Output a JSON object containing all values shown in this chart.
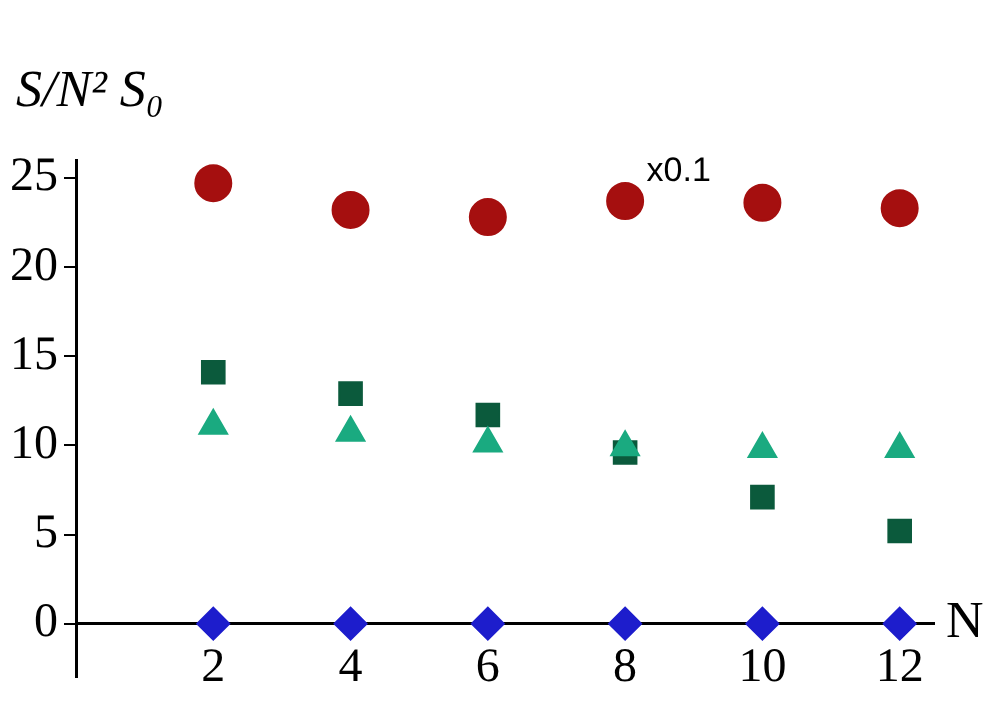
{
  "chart_data": {
    "type": "scatter",
    "ylabel": "S/N² S₀",
    "xlabel": "N",
    "x": [
      2,
      4,
      6,
      8,
      10,
      12
    ],
    "series": [
      {
        "color": "#a50f0f",
        "marker": "circle",
        "values": [
          24.7,
          23.2,
          22.8,
          23.7,
          23.6,
          23.3
        ]
      },
      {
        "color": "#0b5a3c",
        "marker": "square",
        "values": [
          14.1,
          12.9,
          11.7,
          9.6,
          7.1,
          5.2
        ]
      },
      {
        "color": "#1aaa80",
        "marker": "triangle",
        "values": [
          11.1,
          10.7,
          10.1,
          9.9,
          9.8,
          9.8
        ]
      },
      {
        "color": "#1d1dcc",
        "marker": "diamond",
        "values": [
          0,
          0,
          0,
          0,
          0,
          0
        ]
      }
    ],
    "xlim": [
      0,
      12.5
    ],
    "ylim": [
      -3,
      26
    ],
    "xticks": [
      2,
      4,
      6,
      8,
      10,
      12
    ],
    "yticks": [
      0,
      5,
      10,
      15,
      20,
      25
    ],
    "annotations": [
      "x0.1"
    ],
    "grid": false,
    "legend": false
  }
}
